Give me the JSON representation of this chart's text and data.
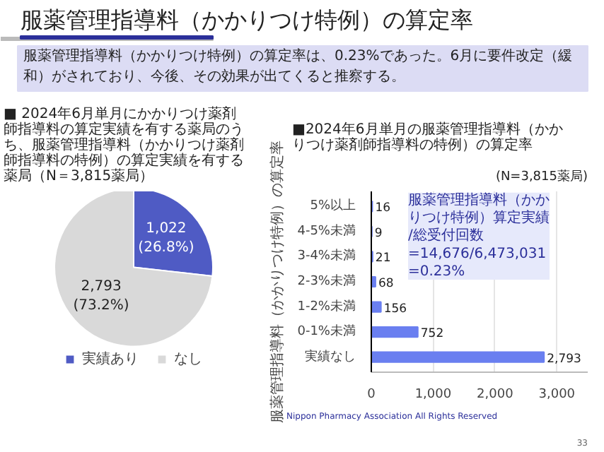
{
  "chart_data": [
    {
      "type": "pie",
      "title": "服薬管理指導料（かかりつけ特例）の算定率",
      "subtitle": "服薬管理指導料（かかりつけ特例）の算定率は、0.23%であった。6月に要件改定（緩和）がされており、今後、その効果が出てくると推察する。",
      "annotations": [
        "■ 2024年6月単月にかかりつけ薬剤師指導料の算定実績を有する薬局のうち、服薬管理指導料（かかりつけ薬剤師指導料の特例）の算定実績を有する薬局（N＝3,815薬局）"
      ],
      "categories": [
        "実績あり",
        "なし"
      ],
      "values": [
        1022,
        2793
      ],
      "colors": [
        "#4f5bc4",
        "#d9d9d9"
      ],
      "value_labels": [
        "1,022\n(26.8%)",
        "2,793\n(73.2%)"
      ],
      "legend": "bottom"
    },
    {
      "type": "bar",
      "orientation": "horizontal",
      "title": "■2024年6月単月の服薬管理指導料（かかりつけ薬剤師指導料の特例）の算定率",
      "ylabel": "服薬管理指導料（かかりつけ特例）の算定率",
      "annotations": [
        "(N=3,815薬局)",
        "服薬管理指導料（かかりつけ特例）算定実績/総受付回数",
        "=14,676/6,473,031",
        "=0.23%",
        "Nippon Pharmacy Association All Rights Reserved",
        "33"
      ],
      "categories": [
        "5%以上",
        "4-5%未満",
        "3-4%未満",
        "2-3%未満",
        "1-2%未満",
        "0-1%未満",
        "実績なし"
      ],
      "values": [
        16,
        9,
        21,
        68,
        156,
        752,
        2793
      ],
      "color": "#6a7ff0",
      "value_labels": [
        "16",
        "9",
        "21",
        "68",
        "156",
        "752",
        "2,793"
      ],
      "xlim": [
        0,
        3500
      ],
      "xticks": [
        0,
        {
          "value": 1000,
          "label": "1,000"
        },
        {
          "value": 2000,
          "label": "2,000"
        },
        {
          "value": 3000,
          "label": "3,000"
        }
      ],
      "grid": "x"
    }
  ]
}
